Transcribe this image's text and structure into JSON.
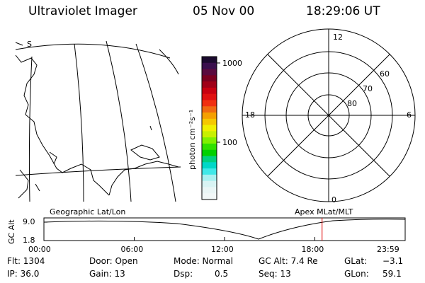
{
  "header": {
    "title": "Ultraviolet Imager",
    "date": "05 Nov 00",
    "time": "18:29:06 UT"
  },
  "colorbar": {
    "unit_label": "photon cm⁻²s⁻¹",
    "tick_1000": "1000",
    "tick_100": "100",
    "colors_top_to_bottom": [
      "#1b0a2e",
      "#3a0f4d",
      "#5a0a3e",
      "#7a0020",
      "#a00018",
      "#c80010",
      "#e01010",
      "#f03010",
      "#f06a10",
      "#f5a000",
      "#f5c800",
      "#f0f000",
      "#c8f000",
      "#80f000",
      "#30e000",
      "#00d000",
      "#00d080",
      "#00d8c8",
      "#40e8e8",
      "#a8f0f0",
      "#d8f4f4",
      "#eaf6f6",
      "#f2f8f8"
    ]
  },
  "polar_plot": {
    "label_top": "12",
    "label_left": "18",
    "label_right": "6",
    "label_bottom": "0",
    "lat_60": "60",
    "lat_70": "70",
    "lat_80": "80"
  },
  "map_panel": {
    "label_s": "S"
  },
  "timeline": {
    "left_label": "Geographic Lat/Lon",
    "right_label": "Apex MLat/MLT",
    "y_axis_label": "GC Alt",
    "y_top": "9.0",
    "y_bottom": "1.8",
    "x_ticks": [
      "00:00",
      "06:00",
      "12:00",
      "18:00",
      "23:59"
    ],
    "current_time_fraction": 0.77,
    "marker_color": "#e00000"
  },
  "footer": {
    "flt": "Flt: 1304",
    "ip": "IP: 36.0",
    "door": "Door: Open",
    "gain": "Gain: 13",
    "mode": "Mode: Normal",
    "dsp_label": "Dsp:",
    "dsp_value": "0.5",
    "gc_alt": "GC Alt: 7.4 Re",
    "seq": "Seq: 13",
    "glat_label": "GLat:",
    "glat_value": "−3.1",
    "glon_label": "GLon:",
    "glon_value": "59.1"
  }
}
